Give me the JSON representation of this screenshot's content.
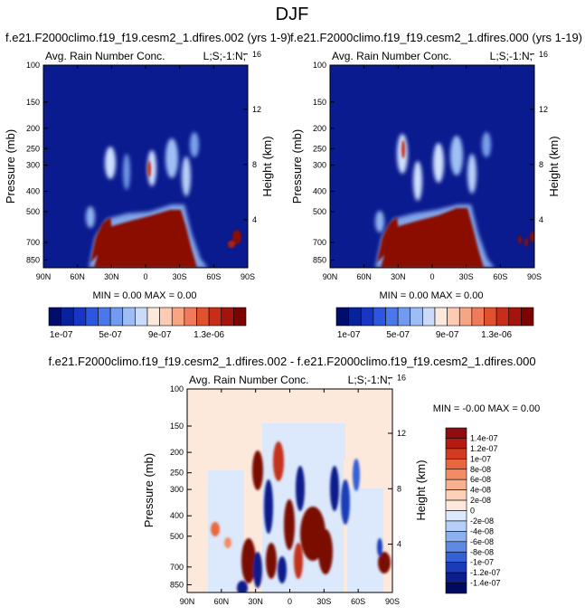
{
  "figure": {
    "title": "DJF",
    "font_note": ""
  },
  "chart_data": [
    {
      "id": "panel-left",
      "type": "heatmap",
      "case_title": "f.e21.F2000climo.f19_f19.cesm2_1.dfires.002 (yrs 1-9)",
      "title": "Avg. Rain Number Conc.",
      "corner_label": "L;S;-1:N;",
      "xlabel": "",
      "ylabel": "Pressure (mb)",
      "ylabel_right": "Height (km)",
      "xticks": [
        "90N",
        "60N",
        "30N",
        "0",
        "30S",
        "60S",
        "90S"
      ],
      "xlim": [
        90,
        -90
      ],
      "yticks": [
        "100",
        "150",
        "200",
        "250",
        "300",
        "400",
        "500",
        "700",
        "850"
      ],
      "yvalues": [
        100,
        150,
        200,
        250,
        300,
        400,
        500,
        700,
        850
      ],
      "ylim": [
        100,
        925
      ],
      "height_ticks": [
        "16",
        "12",
        "8",
        "4"
      ],
      "height_values_km": [
        16,
        12,
        8,
        4
      ],
      "stats": "MIN =  0.00  MAX =  0.00",
      "colorbar": {
        "labels": [
          "1e-07",
          "5e-07",
          "9e-07",
          "1.3e-06"
        ],
        "colors": [
          "#000d6b",
          "#08229c",
          "#1836c3",
          "#2d56e0",
          "#4a77ea",
          "#709bf0",
          "#9ebdf5",
          "#cadbf9",
          "#fde9dc",
          "#fdcbb1",
          "#f8a584",
          "#ef7b5a",
          "#e0522e",
          "#c72e1a",
          "#a3150c",
          "#7c0300"
        ]
      }
    },
    {
      "id": "panel-right",
      "type": "heatmap",
      "case_title": "f.e21.F2000climo.f19_f19.cesm2_1.dfires.000 (yrs 1-19)",
      "title": "Avg. Rain Number Conc.",
      "corner_label": "L;S;-1:N;",
      "xlabel": "",
      "ylabel": "Pressure (mb)",
      "ylabel_right": "Height (km)",
      "xticks": [
        "90N",
        "60N",
        "30N",
        "0",
        "30S",
        "60S",
        "90S"
      ],
      "xlim": [
        90,
        -90
      ],
      "yticks": [
        "100",
        "150",
        "200",
        "250",
        "300",
        "400",
        "500",
        "700",
        "850"
      ],
      "yvalues": [
        100,
        150,
        200,
        250,
        300,
        400,
        500,
        700,
        850
      ],
      "ylim": [
        100,
        925
      ],
      "height_ticks": [
        "16",
        "12",
        "8",
        "4"
      ],
      "height_values_km": [
        16,
        12,
        8,
        4
      ],
      "stats": "MIN =  0.00  MAX =  0.00",
      "colorbar": {
        "labels": [
          "1e-07",
          "5e-07",
          "9e-07",
          "1.3e-06"
        ],
        "colors": [
          "#000d6b",
          "#08229c",
          "#1836c3",
          "#2d56e0",
          "#4a77ea",
          "#709bf0",
          "#9ebdf5",
          "#cadbf9",
          "#fde9dc",
          "#fdcbb1",
          "#f8a584",
          "#ef7b5a",
          "#e0522e",
          "#c72e1a",
          "#a3150c",
          "#7c0300"
        ]
      }
    },
    {
      "id": "panel-diff",
      "type": "heatmap",
      "case_title": "f.e21.F2000climo.f19_f19.cesm2_1.dfires.002 - f.e21.F2000climo.f19_f19.cesm2_1.dfires.000",
      "title": "Avg. Rain Number Conc.",
      "corner_label": "L;S;-1:N;",
      "xlabel": "",
      "ylabel": "Pressure (mb)",
      "ylabel_right": "Height (km)",
      "xticks": [
        "90N",
        "60N",
        "30N",
        "0",
        "30S",
        "60S",
        "90S"
      ],
      "xlim": [
        90,
        -90
      ],
      "yticks": [
        "100",
        "150",
        "200",
        "250",
        "300",
        "400",
        "500",
        "700",
        "850"
      ],
      "yvalues": [
        100,
        150,
        200,
        250,
        300,
        400,
        500,
        700,
        850
      ],
      "ylim": [
        100,
        925
      ],
      "height_ticks": [
        "16",
        "12",
        "8",
        "4"
      ],
      "height_values_km": [
        16,
        12,
        8,
        4
      ],
      "stats": "MIN = -0.00  MAX =  0.00",
      "colorbar": {
        "labels": [
          "1.4e-07",
          "1.2e-07",
          "1e-07",
          "8e-08",
          "6e-08",
          "4e-08",
          "2e-08",
          "0",
          "-2e-08",
          "-4e-08",
          "-6e-08",
          "-8e-08",
          "-1e-07",
          "-1.2e-07",
          "-1.4e-07"
        ],
        "colors": [
          "#8f0d0d",
          "#b41a12",
          "#d33a20",
          "#e9673f",
          "#f38c64",
          "#f9b08f",
          "#fcd1b8",
          "#fde9dc",
          "#dce8fb",
          "#b7cef6",
          "#8db0ee",
          "#5e8ae4",
          "#3561d6",
          "#1a3cb8",
          "#0b1e8c",
          "#000a60"
        ]
      }
    }
  ]
}
